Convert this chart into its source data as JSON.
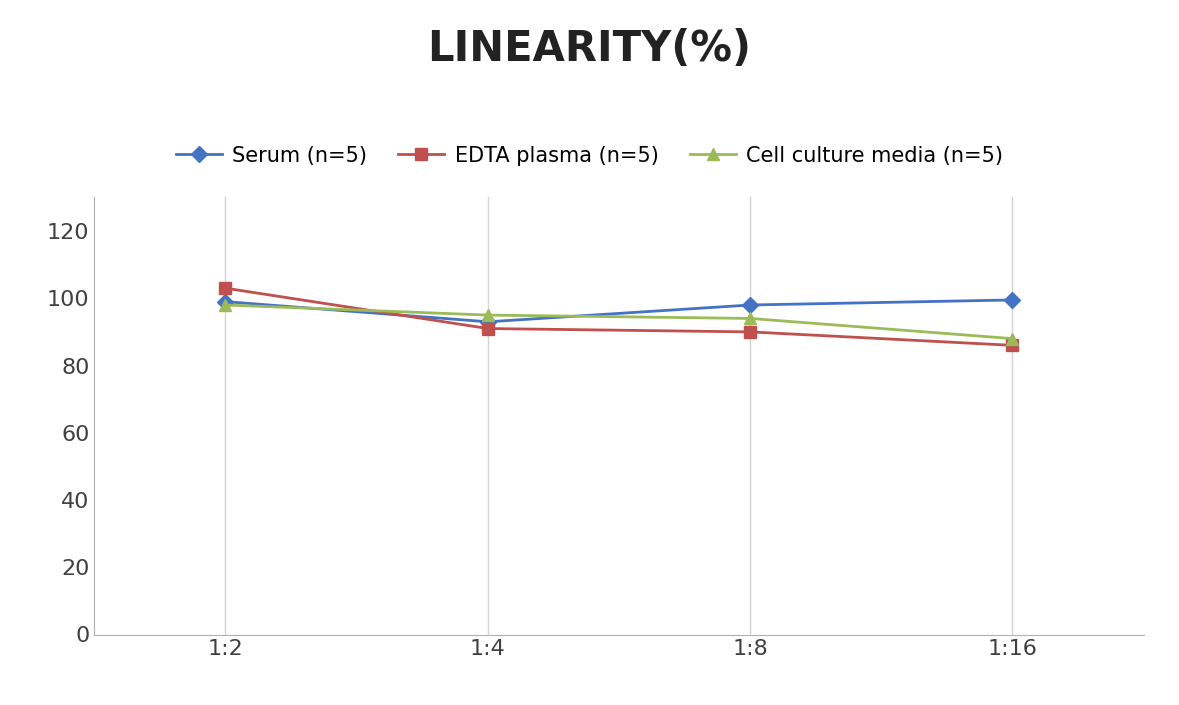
{
  "title": "LINEARITY(%)",
  "x_labels": [
    "1:2",
    "1:4",
    "1:8",
    "1:16"
  ],
  "x_positions": [
    0,
    1,
    2,
    3
  ],
  "series": [
    {
      "label": "Serum (n=5)",
      "values": [
        99,
        93,
        98,
        99.5
      ],
      "color": "#4472C4",
      "marker": "D",
      "marker_size": 8,
      "linewidth": 2
    },
    {
      "label": "EDTA plasma (n=5)",
      "values": [
        103,
        91,
        90,
        86
      ],
      "color": "#C0504D",
      "marker": "s",
      "marker_size": 8,
      "linewidth": 2
    },
    {
      "label": "Cell culture media (n=5)",
      "values": [
        98,
        95,
        94,
        88
      ],
      "color": "#9BBB59",
      "marker": "^",
      "marker_size": 9,
      "linewidth": 2
    }
  ],
  "ylim": [
    0,
    130
  ],
  "yticks": [
    0,
    20,
    40,
    60,
    80,
    100,
    120
  ],
  "background_color": "#ffffff",
  "grid_color": "#d3d3d3",
  "title_fontsize": 30,
  "tick_fontsize": 16,
  "legend_fontsize": 15
}
